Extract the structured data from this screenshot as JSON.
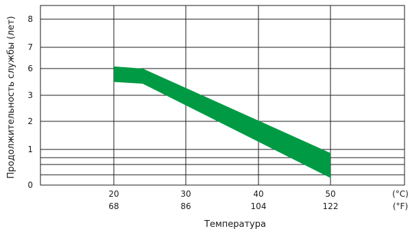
{
  "chart_data": {
    "type": "area",
    "title": "",
    "xlabel": "Температура",
    "ylabel": "Продолжительность службы (лет)",
    "x_unit_primary": "(°C)",
    "x_unit_secondary": "(°F)",
    "x_ticks_celsius": [
      "20",
      "30",
      "40",
      "50"
    ],
    "x_ticks_fahrenheit": [
      "68",
      "86",
      "104",
      "122"
    ],
    "y_tick_labels": [
      "0",
      "1",
      "2",
      "3",
      "6",
      "7",
      "8"
    ],
    "band_color": "#009a44",
    "grid": true,
    "band": {
      "x": [
        20,
        24,
        50
      ],
      "upper": [
        6.1,
        6.0,
        0.9
      ],
      "lower": [
        4.5,
        4.3,
        0.2
      ]
    }
  }
}
